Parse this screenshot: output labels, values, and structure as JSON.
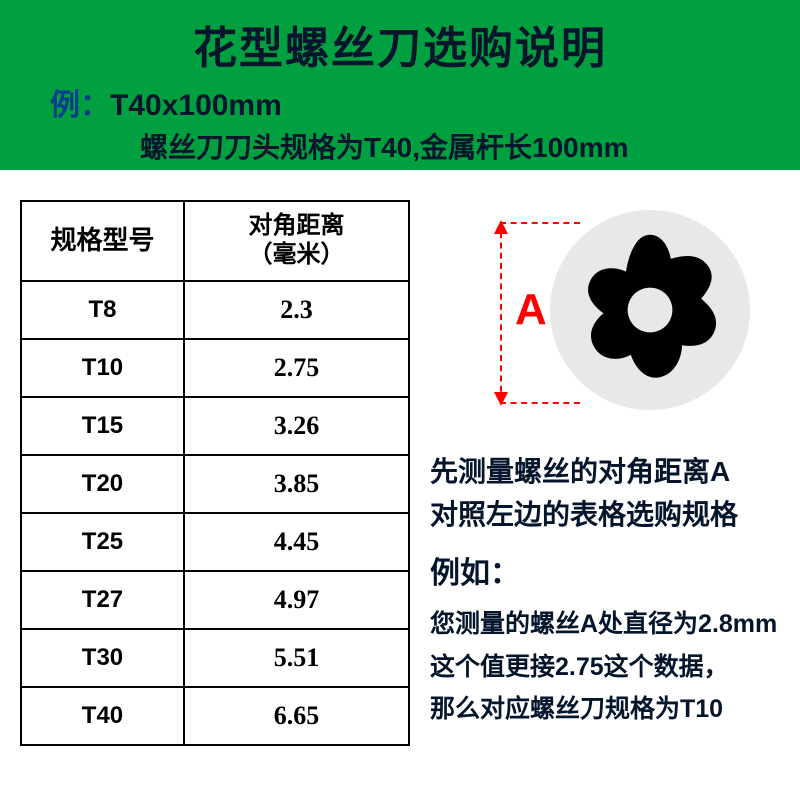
{
  "header": {
    "bg_color": "#00a040",
    "title": "花型螺丝刀选购说明",
    "title_color": "#05152b",
    "example_label": "例：",
    "example_label_color": "#003b8f",
    "example_value": "T40x100mm",
    "example_value_color": "#05152b",
    "example_desc": "螺丝刀刀头规格为T40,金属杆长100mm",
    "example_desc_color": "#05152b"
  },
  "table": {
    "col1_header": "规格型号",
    "col2_header_l1": "对角距离",
    "col2_header_l2": "（毫米）",
    "rows": [
      {
        "model": "T8",
        "dist": "2.3"
      },
      {
        "model": "T10",
        "dist": "2.75"
      },
      {
        "model": "T15",
        "dist": "3.26"
      },
      {
        "model": "T20",
        "dist": "3.85"
      },
      {
        "model": "T25",
        "dist": "4.45"
      },
      {
        "model": "T27",
        "dist": "4.97"
      },
      {
        "model": "T30",
        "dist": "5.51"
      },
      {
        "model": "T40",
        "dist": "6.65"
      }
    ]
  },
  "diagram": {
    "label": "A",
    "label_color": "#ff0000",
    "line_color": "#ff0000",
    "circle_bg": "#e8e8e8",
    "torx_color": "#000000"
  },
  "instructions": {
    "line1": "先测量螺丝的对角距离A",
    "line2": "对照左边的表格选购规格",
    "example_header": "例如：",
    "ex_line1": "您测量的螺丝A处直径为2.8mm",
    "ex_line2": "这个值更接2.75这个数据，",
    "ex_line3": "那么对应螺丝刀规格为T10",
    "text_color": "#05152b"
  }
}
